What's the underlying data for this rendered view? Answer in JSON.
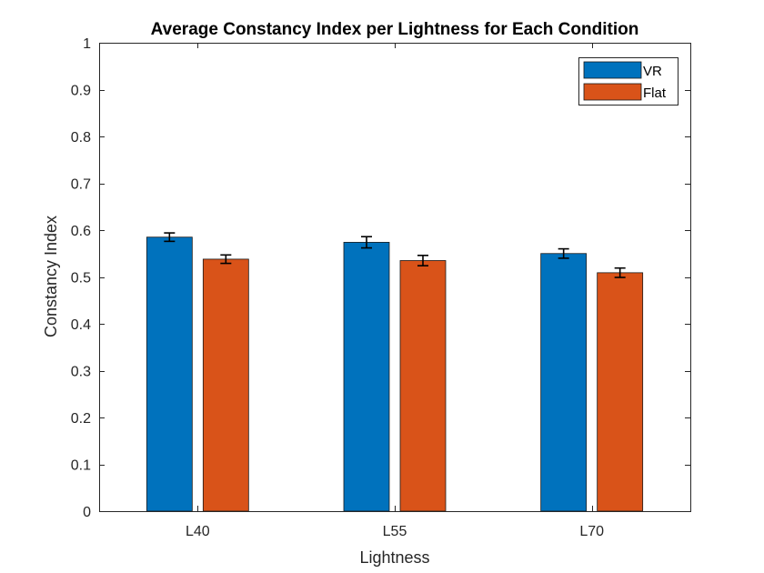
{
  "chart_data": {
    "type": "bar",
    "title": "Average Constancy Index per Lightness for Each Condition",
    "xlabel": "Lightness",
    "ylabel": "Constancy Index",
    "categories": [
      "L40",
      "L55",
      "L70"
    ],
    "ylim": [
      0,
      1
    ],
    "yticks": [
      0,
      0.1,
      0.2,
      0.3,
      0.4,
      0.5,
      0.6,
      0.7,
      0.8,
      0.9,
      1
    ],
    "ytick_labels": [
      "0",
      "0.1",
      "0.2",
      "0.3",
      "0.4",
      "0.5",
      "0.6",
      "0.7",
      "0.8",
      "0.9",
      "1"
    ],
    "grid": false,
    "legend_position": "top-right",
    "series": [
      {
        "name": "VR",
        "color": "#0072BD",
        "values": [
          0.585,
          0.574,
          0.55
        ],
        "errors": [
          0.009,
          0.012,
          0.01
        ]
      },
      {
        "name": "Flat",
        "color": "#D95319",
        "values": [
          0.538,
          0.535,
          0.509
        ],
        "errors": [
          0.009,
          0.011,
          0.01
        ]
      }
    ]
  }
}
